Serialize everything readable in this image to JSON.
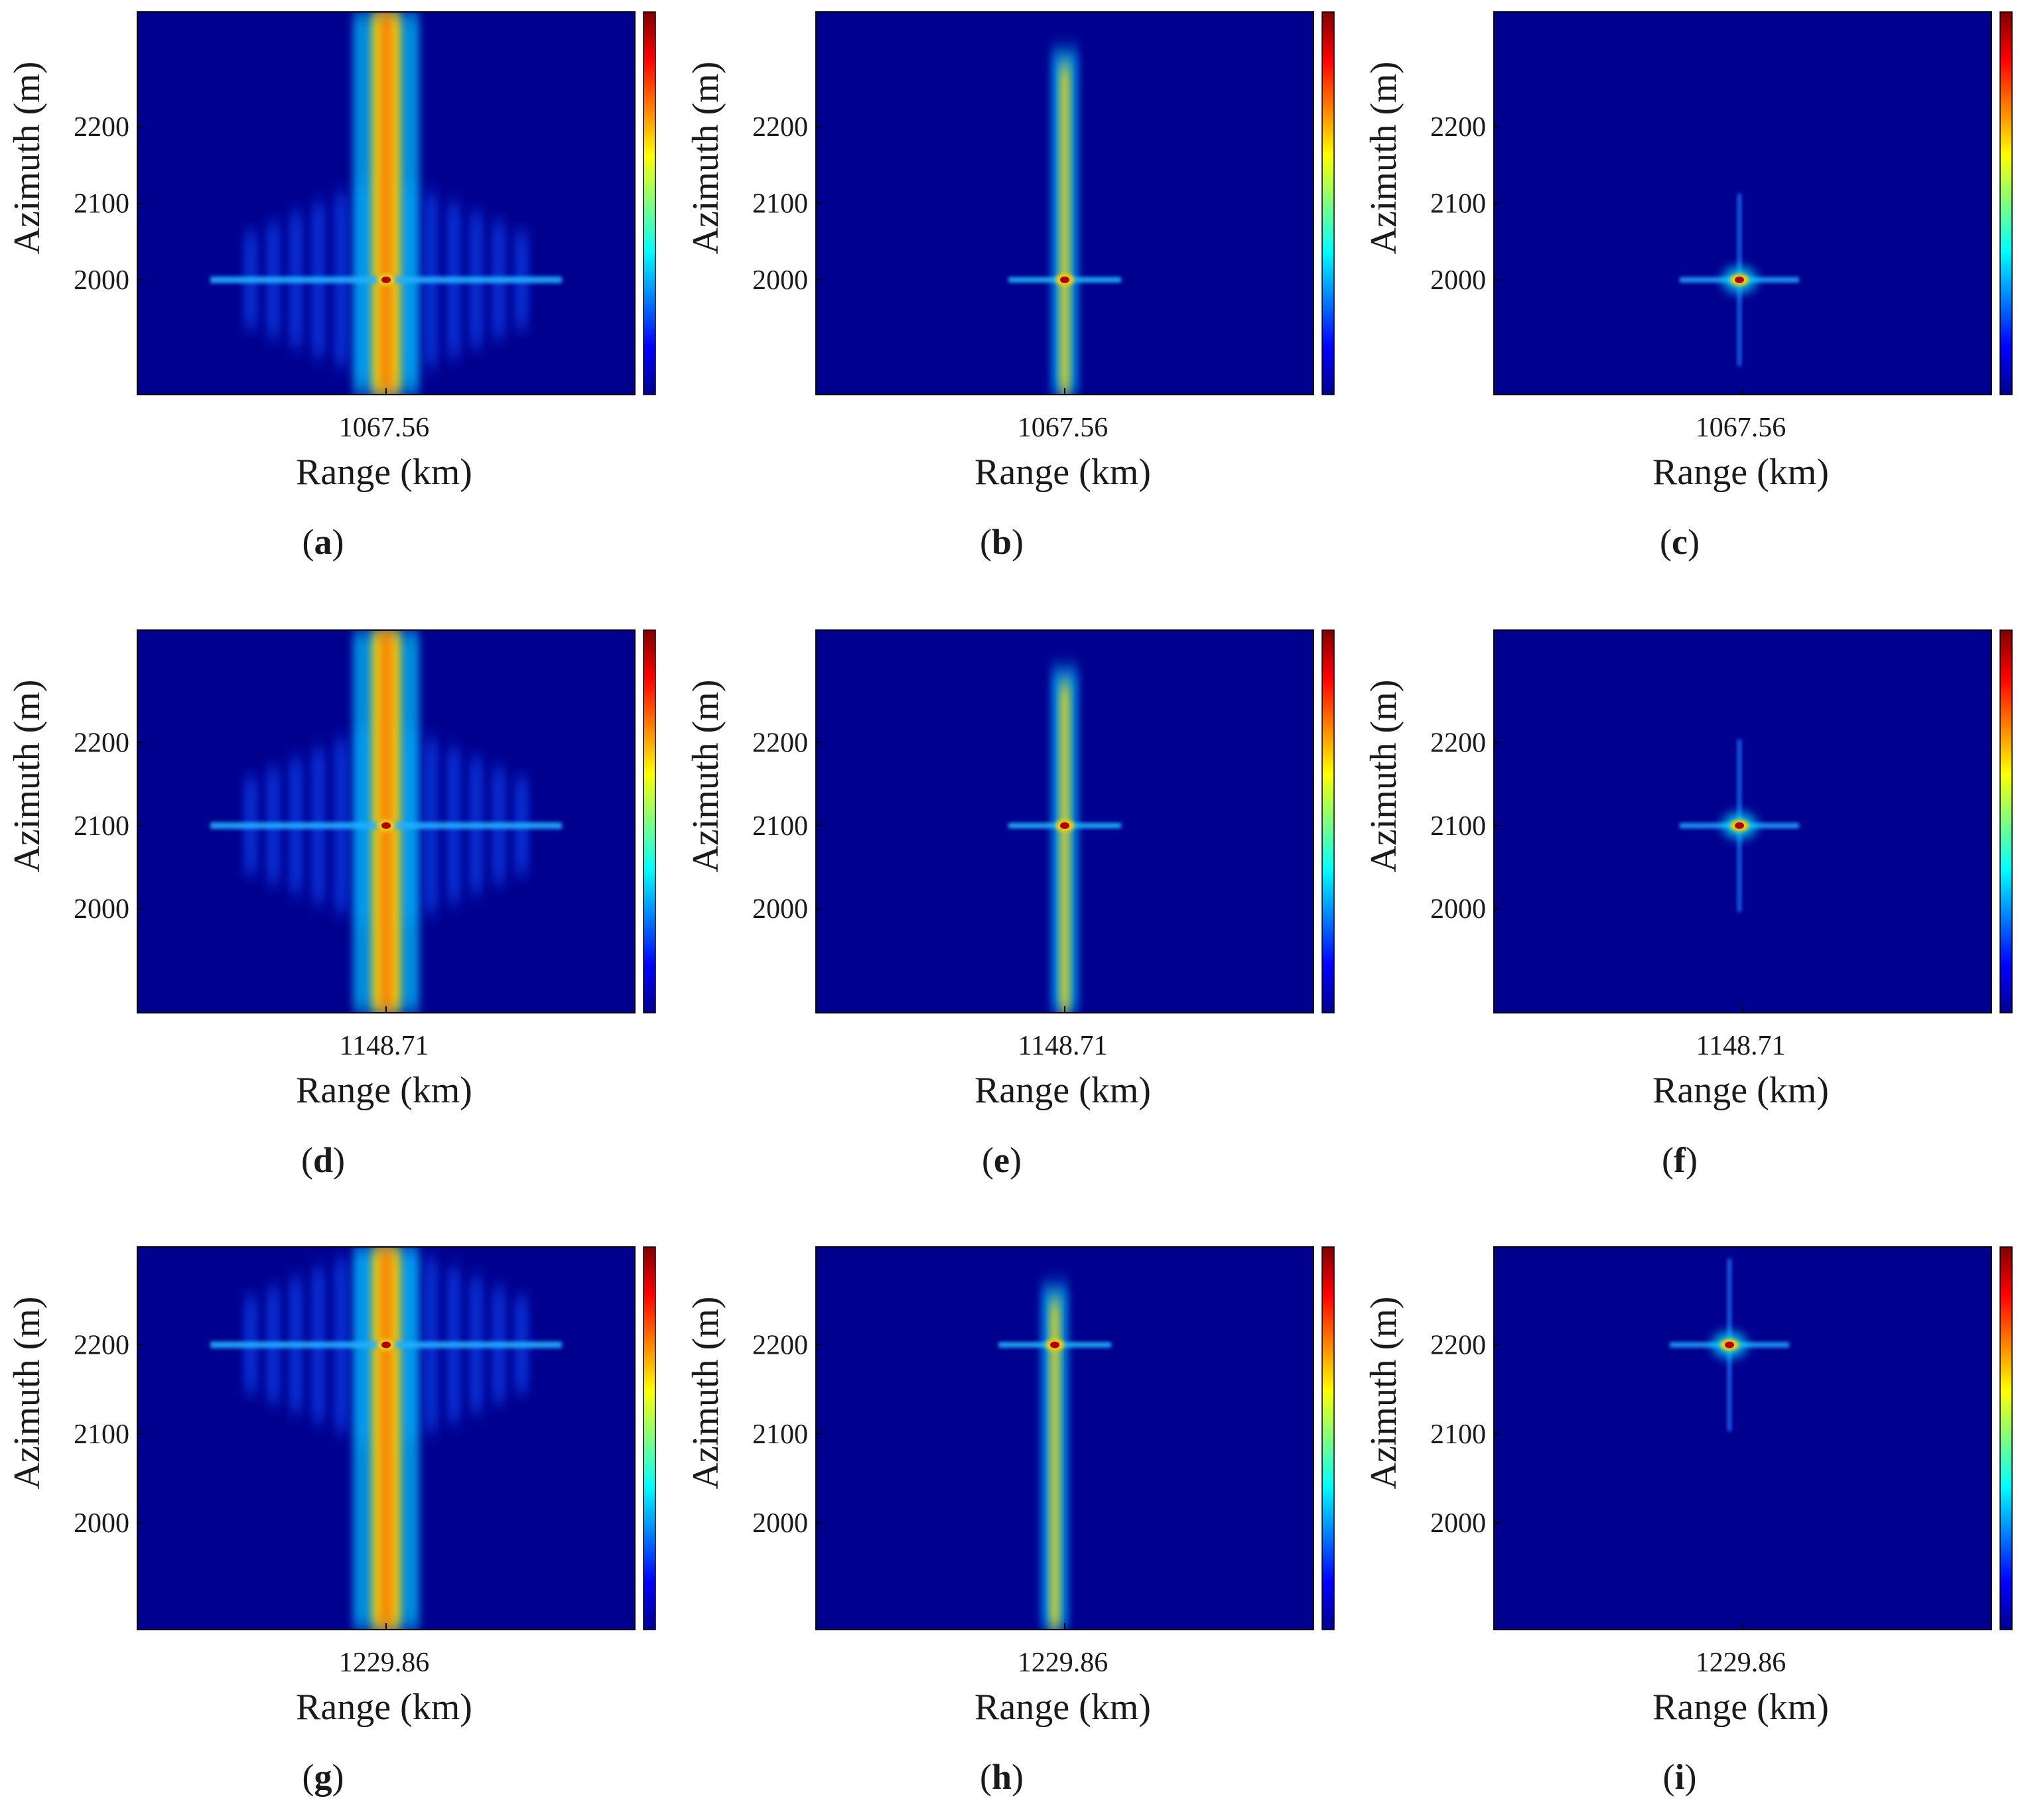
{
  "figure": {
    "panels_note": "3x3 grid of SAR point-target images",
    "colormap": "jet",
    "background_color": "#00008f"
  },
  "chart_data": [
    {
      "id": "a",
      "type": "heatmap",
      "panel_label": "a",
      "xlabel": "Range (km)",
      "ylabel": "Azimuth (m)",
      "x_ticks": [
        "1067.56"
      ],
      "y_ticks": [
        "2000",
        "2100",
        "2200"
      ],
      "ylim": [
        1850,
        2350
      ],
      "target": {
        "range_km": 1067.56,
        "azimuth_m": 2000
      },
      "focus": "poor",
      "colorbar": true
    },
    {
      "id": "b",
      "type": "heatmap",
      "panel_label": "b",
      "xlabel": "Range (km)",
      "ylabel": "Azimuth (m)",
      "x_ticks": [
        "1067.56"
      ],
      "y_ticks": [
        "2000",
        "2100",
        "2200"
      ],
      "ylim": [
        1850,
        2350
      ],
      "target": {
        "range_km": 1067.56,
        "azimuth_m": 2000
      },
      "focus": "partial",
      "colorbar": true
    },
    {
      "id": "c",
      "type": "heatmap",
      "panel_label": "c",
      "xlabel": "Range (km)",
      "ylabel": "Azimuth (m)",
      "x_ticks": [
        "1067.56"
      ],
      "y_ticks": [
        "2000",
        "2100",
        "2200"
      ],
      "ylim": [
        1850,
        2350
      ],
      "target": {
        "range_km": 1067.56,
        "azimuth_m": 2000
      },
      "focus": "good",
      "colorbar": true
    },
    {
      "id": "d",
      "type": "heatmap",
      "panel_label": "d",
      "xlabel": "Range (km)",
      "ylabel": "Azimuth (m)",
      "x_ticks": [
        "1148.71"
      ],
      "y_ticks": [
        "2000",
        "2100",
        "2200"
      ],
      "ylim": [
        1875,
        2335
      ],
      "target": {
        "range_km": 1148.71,
        "azimuth_m": 2100
      },
      "focus": "poor",
      "colorbar": true
    },
    {
      "id": "e",
      "type": "heatmap",
      "panel_label": "e",
      "xlabel": "Range (km)",
      "ylabel": "Azimuth (m)",
      "x_ticks": [
        "1148.71"
      ],
      "y_ticks": [
        "2000",
        "2100",
        "2200"
      ],
      "ylim": [
        1875,
        2335
      ],
      "target": {
        "range_km": 1148.71,
        "azimuth_m": 2100
      },
      "focus": "partial",
      "colorbar": true
    },
    {
      "id": "f",
      "type": "heatmap",
      "panel_label": "f",
      "xlabel": "Range (km)",
      "ylabel": "Azimuth (m)",
      "x_ticks": [
        "1148.71"
      ],
      "y_ticks": [
        "2000",
        "2100",
        "2200"
      ],
      "ylim": [
        1875,
        2335
      ],
      "target": {
        "range_km": 1148.71,
        "azimuth_m": 2100
      },
      "focus": "good",
      "colorbar": true
    },
    {
      "id": "g",
      "type": "heatmap",
      "panel_label": "g",
      "xlabel": "Range (km)",
      "ylabel": "Azimuth (m)",
      "x_ticks": [
        "1229.86"
      ],
      "y_ticks": [
        "2000",
        "2100",
        "2200"
      ],
      "ylim": [
        1880,
        2310
      ],
      "target": {
        "range_km": 1229.86,
        "azimuth_m": 2200
      },
      "focus": "poor",
      "colorbar": true
    },
    {
      "id": "h",
      "type": "heatmap",
      "panel_label": "h",
      "xlabel": "Range (km)",
      "ylabel": "Azimuth (m)",
      "x_ticks": [
        "1229.86"
      ],
      "y_ticks": [
        "2000",
        "2100",
        "2200"
      ],
      "ylim": [
        1880,
        2310
      ],
      "target": {
        "range_km": 1229.86,
        "azimuth_m": 2200
      },
      "focus": "partial",
      "colorbar": true
    },
    {
      "id": "i",
      "type": "heatmap",
      "panel_label": "i",
      "xlabel": "Range (km)",
      "ylabel": "Azimuth (m)",
      "x_ticks": [
        "1229.86"
      ],
      "y_ticks": [
        "2000",
        "2100",
        "2200"
      ],
      "ylim": [
        1880,
        2310
      ],
      "target": {
        "range_km": 1229.86,
        "azimuth_m": 2200
      },
      "focus": "good",
      "colorbar": true
    }
  ]
}
